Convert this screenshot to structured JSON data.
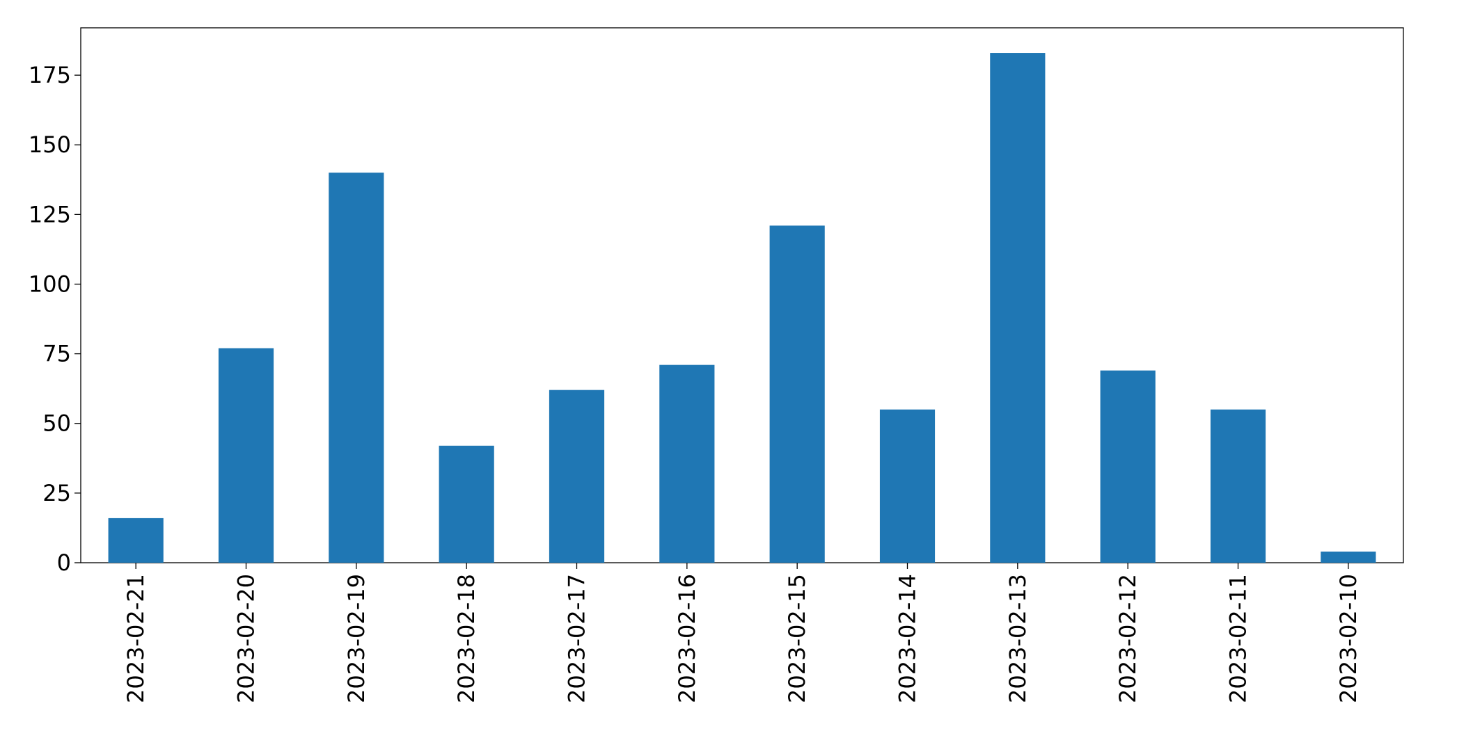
{
  "chart_data": {
    "type": "bar",
    "categories": [
      "2023-02-21",
      "2023-02-20",
      "2023-02-19",
      "2023-02-18",
      "2023-02-17",
      "2023-02-16",
      "2023-02-15",
      "2023-02-14",
      "2023-02-13",
      "2023-02-12",
      "2023-02-11",
      "2023-02-10"
    ],
    "values": [
      16,
      77,
      140,
      42,
      62,
      71,
      121,
      55,
      183,
      69,
      55,
      4
    ],
    "color": "#1f77b4",
    "ylim": [
      0,
      192
    ],
    "yticks": [
      0,
      25,
      50,
      75,
      100,
      125,
      150,
      175
    ],
    "grid": false
  }
}
